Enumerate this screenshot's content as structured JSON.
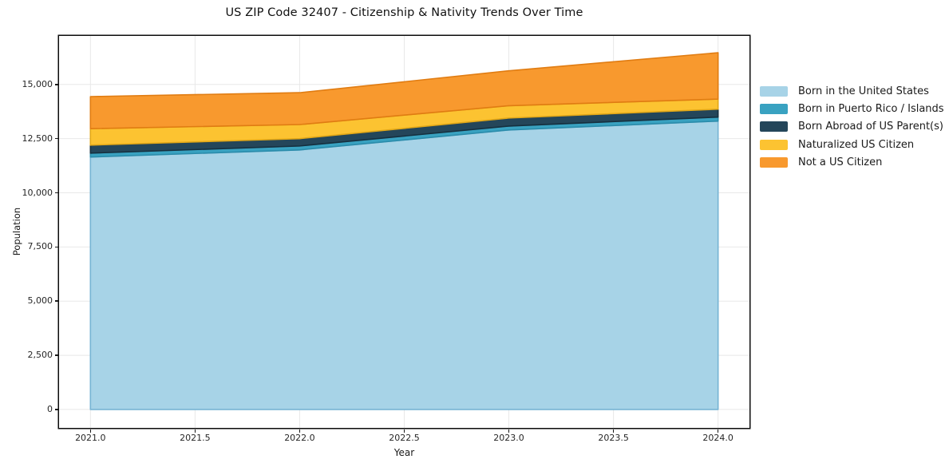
{
  "chart_data": {
    "type": "area",
    "stacked": true,
    "title": "US ZIP Code 32407 - Citizenship & Nativity Trends Over Time",
    "xlabel": "Year",
    "ylabel": "Population",
    "x": [
      2021,
      2022,
      2023,
      2024
    ],
    "series": [
      {
        "name": "Born in the United States",
        "values": [
          11650,
          11980,
          12900,
          13310
        ],
        "color": "#A7D3E7",
        "edge_color": "#76B4D4"
      },
      {
        "name": "Born in Puerto Rico / Islands",
        "values": [
          180,
          180,
          180,
          185
        ],
        "color": "#39A2C1",
        "edge_color": "#2B8CAB"
      },
      {
        "name": "Born Abroad of US Parent(s)",
        "values": [
          370,
          340,
          370,
          365
        ],
        "color": "#24465A",
        "edge_color": "#16303F"
      },
      {
        "name": "Naturalized US Citizen",
        "values": [
          760,
          650,
          570,
          465
        ],
        "color": "#FCC331",
        "edge_color": "#E3A817"
      },
      {
        "name": "Not a US Citizen",
        "values": [
          1480,
          1470,
          1610,
          2140
        ],
        "color": "#F8992E",
        "edge_color": "#E07C12"
      }
    ],
    "totals": [
      14440,
      14620,
      15630,
      16465
    ],
    "xlim": [
      2020.85,
      2024.15
    ],
    "ylim": [
      -850,
      17240
    ],
    "xtick_values": [
      2021.0,
      2021.5,
      2022.0,
      2022.5,
      2023.0,
      2023.5,
      2024.0
    ],
    "xtick_labels": [
      "2021.0",
      "2021.5",
      "2022.0",
      "2022.5",
      "2023.0",
      "2023.5",
      "2024.0"
    ],
    "ytick_values": [
      0,
      2500,
      5000,
      7500,
      10000,
      12500,
      15000
    ],
    "ytick_labels": [
      "0",
      "2,500",
      "5,000",
      "7,500",
      "10,000",
      "12,500",
      "15,000"
    ],
    "grid": true,
    "grid_color": "#E8E8E8",
    "spine_color": "#0C0C0C",
    "legend_position": "right-outside",
    "legend_frame": false
  }
}
